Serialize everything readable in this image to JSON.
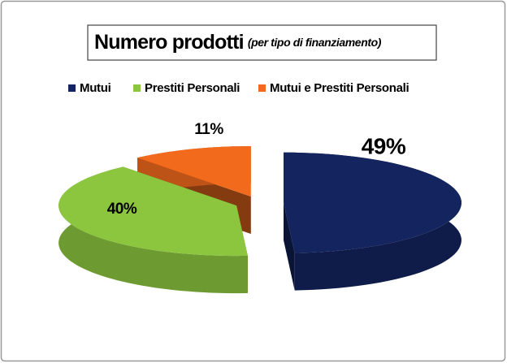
{
  "chart_data": {
    "type": "pie3d",
    "title": "Numero prodotti",
    "subtitle": "(per tipo di finanziamento)",
    "categories": [
      "Mutui",
      "Prestiti Personali",
      "Mutui e Prestiti Personali"
    ],
    "values": [
      49,
      40,
      11
    ],
    "value_labels": [
      "49%",
      "40%",
      "11%"
    ],
    "colors": [
      "#13245e",
      "#8cc63f",
      "#f26b1d"
    ],
    "legend": "top"
  }
}
